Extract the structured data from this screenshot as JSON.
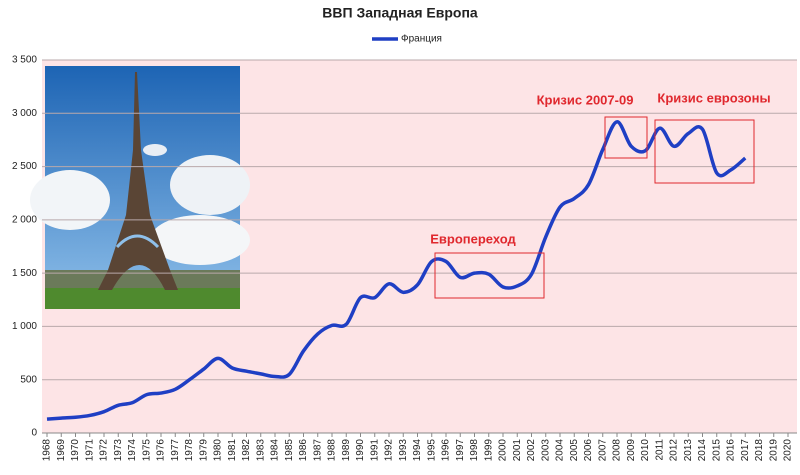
{
  "chart_data": {
    "type": "line",
    "title": "ВВП Западная Европа",
    "categories": [
      "1968",
      "1969",
      "1970",
      "1971",
      "1972",
      "1973",
      "1974",
      "1975",
      "1976",
      "1977",
      "1978",
      "1979",
      "1980",
      "1981",
      "1982",
      "1983",
      "1984",
      "1985",
      "1986",
      "1987",
      "1988",
      "1989",
      "1990",
      "1991",
      "1992",
      "1993",
      "1994",
      "1995",
      "1996",
      "1997",
      "1998",
      "1999",
      "2000",
      "2001",
      "2002",
      "2003",
      "2004",
      "2005",
      "2006",
      "2007",
      "2008",
      "2009",
      "2010",
      "2011",
      "2012",
      "2013",
      "2014",
      "2015",
      "2016",
      "2017",
      "2018",
      "2019",
      "2020"
    ],
    "series": [
      {
        "name": "Франция",
        "color": "#1f3fc4",
        "values": [
          130,
          140,
          148,
          165,
          200,
          260,
          285,
          360,
          375,
          410,
          500,
          600,
          700,
          610,
          580,
          555,
          530,
          550,
          770,
          930,
          1010,
          1020,
          1270,
          1270,
          1400,
          1320,
          1390,
          1610,
          1610,
          1460,
          1500,
          1490,
          1370,
          1380,
          1490,
          1840,
          2120,
          2200,
          2330,
          2660,
          2920,
          2690,
          2650,
          2860,
          2690,
          2810,
          2850,
          2440,
          2470,
          2580,
          null,
          null,
          null
        ]
      }
    ],
    "ylim": [
      0,
      3500
    ],
    "yticks": [
      0,
      500,
      {
        "value": 1000,
        "label": "1 000"
      },
      {
        "value": 1500,
        "label": "1 500"
      },
      {
        "value": 2000,
        "label": "2 000"
      },
      {
        "value": 2500,
        "label": "2 500"
      },
      {
        "value": 3000,
        "label": "3 000"
      },
      {
        "value": 3500,
        "label": "3 500"
      }
    ],
    "grid": true,
    "legend": "top",
    "annotations": [
      "Европереход",
      "Кризис 2007-09",
      "Кризис еврозоны"
    ]
  }
}
